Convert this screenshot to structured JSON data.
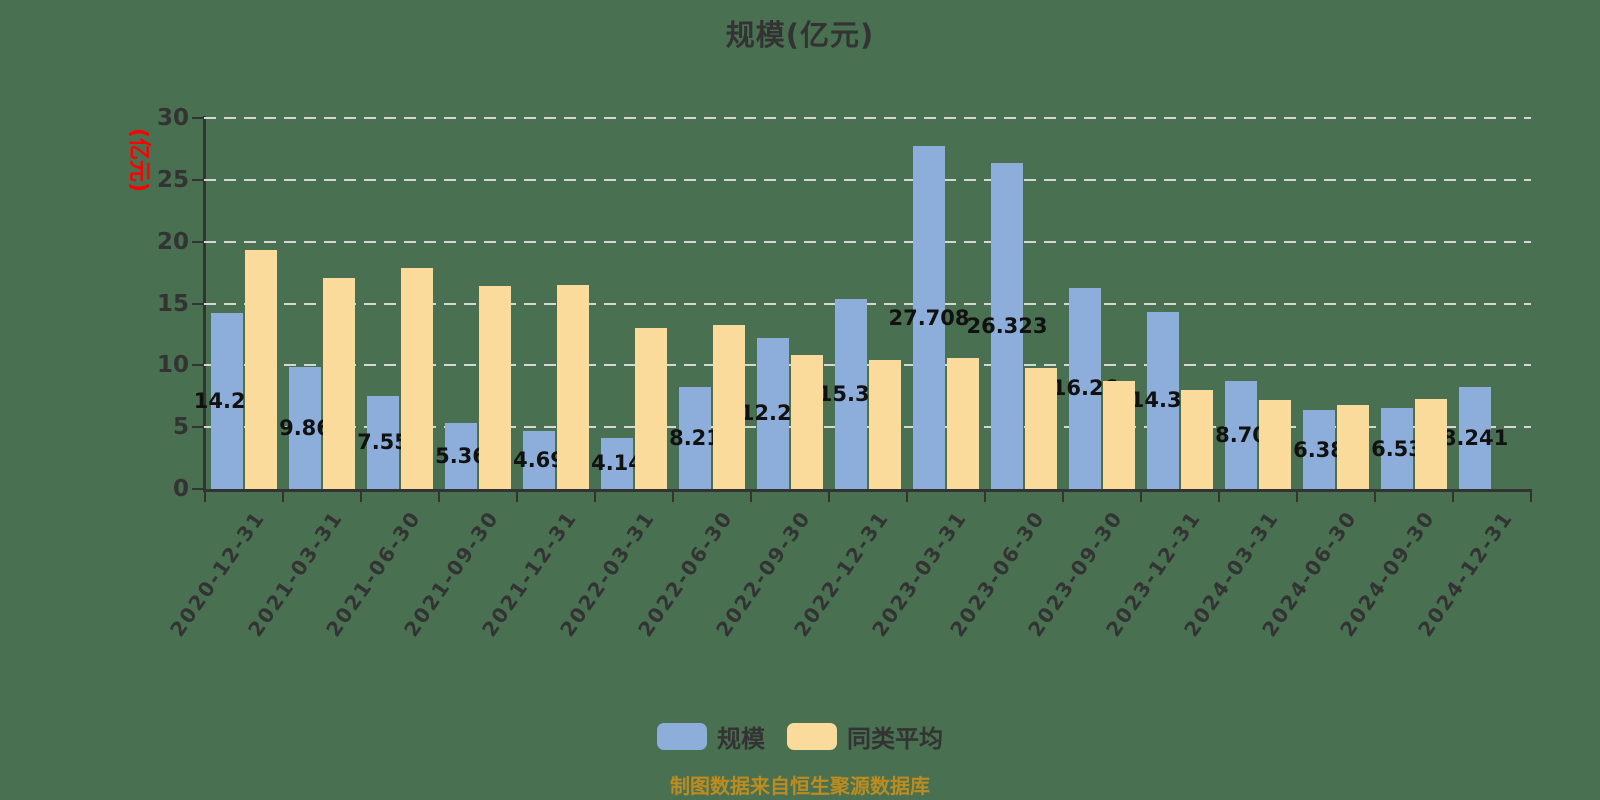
{
  "title": "规模(亿元)",
  "footer": "制图数据来自恒生聚源数据库",
  "y_axis": {
    "name": "(亿元)",
    "name_color": "#FE0000",
    "ticks": [
      0,
      5,
      10,
      15,
      20,
      25,
      30
    ]
  },
  "colors": {
    "background": "#4A7052",
    "scale_bar": "#8DAEDB",
    "average_bar": "#FBDB9B",
    "axis": "#333333",
    "gridline": "#D6D6D6",
    "bar_label": "#111111",
    "footer_text": "#BD8C1E"
  },
  "chart_data": {
    "type": "bar",
    "title": "规模(亿元)",
    "xlabel": "",
    "ylabel": "(亿元)",
    "ylim": [
      0,
      30
    ],
    "grid": true,
    "legend_position": "bottom",
    "categories": [
      "2020-12-31",
      "2021-03-31",
      "2021-06-30",
      "2021-09-30",
      "2021-12-31",
      "2022-03-31",
      "2022-06-30",
      "2022-09-30",
      "2022-12-31",
      "2023-03-31",
      "2023-06-30",
      "2023-09-30",
      "2023-12-31",
      "2024-03-31",
      "2024-06-30",
      "2024-09-30",
      "2024-12-31"
    ],
    "series": [
      {
        "name": "规模",
        "color": "#8DAEDB",
        "values": [
          14.22,
          9.86,
          7.55,
          5.36,
          4.69,
          4.14,
          8.21,
          12.23,
          15.37,
          27.708,
          26.323,
          16.26,
          14.33,
          8.7,
          6.38,
          6.53,
          8.241
        ],
        "labels": [
          "14.22",
          "9.86",
          "7.55",
          "5.36",
          "4.69",
          "4.14",
          "8.21",
          "12.23",
          "15.37",
          "27.708",
          "26.323",
          "16.26",
          "14.33",
          "8.70",
          "6.38",
          "6.53",
          "8.241"
        ]
      },
      {
        "name": "同类平均",
        "color": "#FBDB9B",
        "values": [
          19.3,
          17.1,
          17.9,
          16.4,
          16.5,
          13.0,
          13.3,
          10.8,
          10.4,
          10.6,
          9.8,
          8.7,
          8.0,
          7.2,
          6.8,
          7.3,
          null
        ]
      }
    ]
  }
}
